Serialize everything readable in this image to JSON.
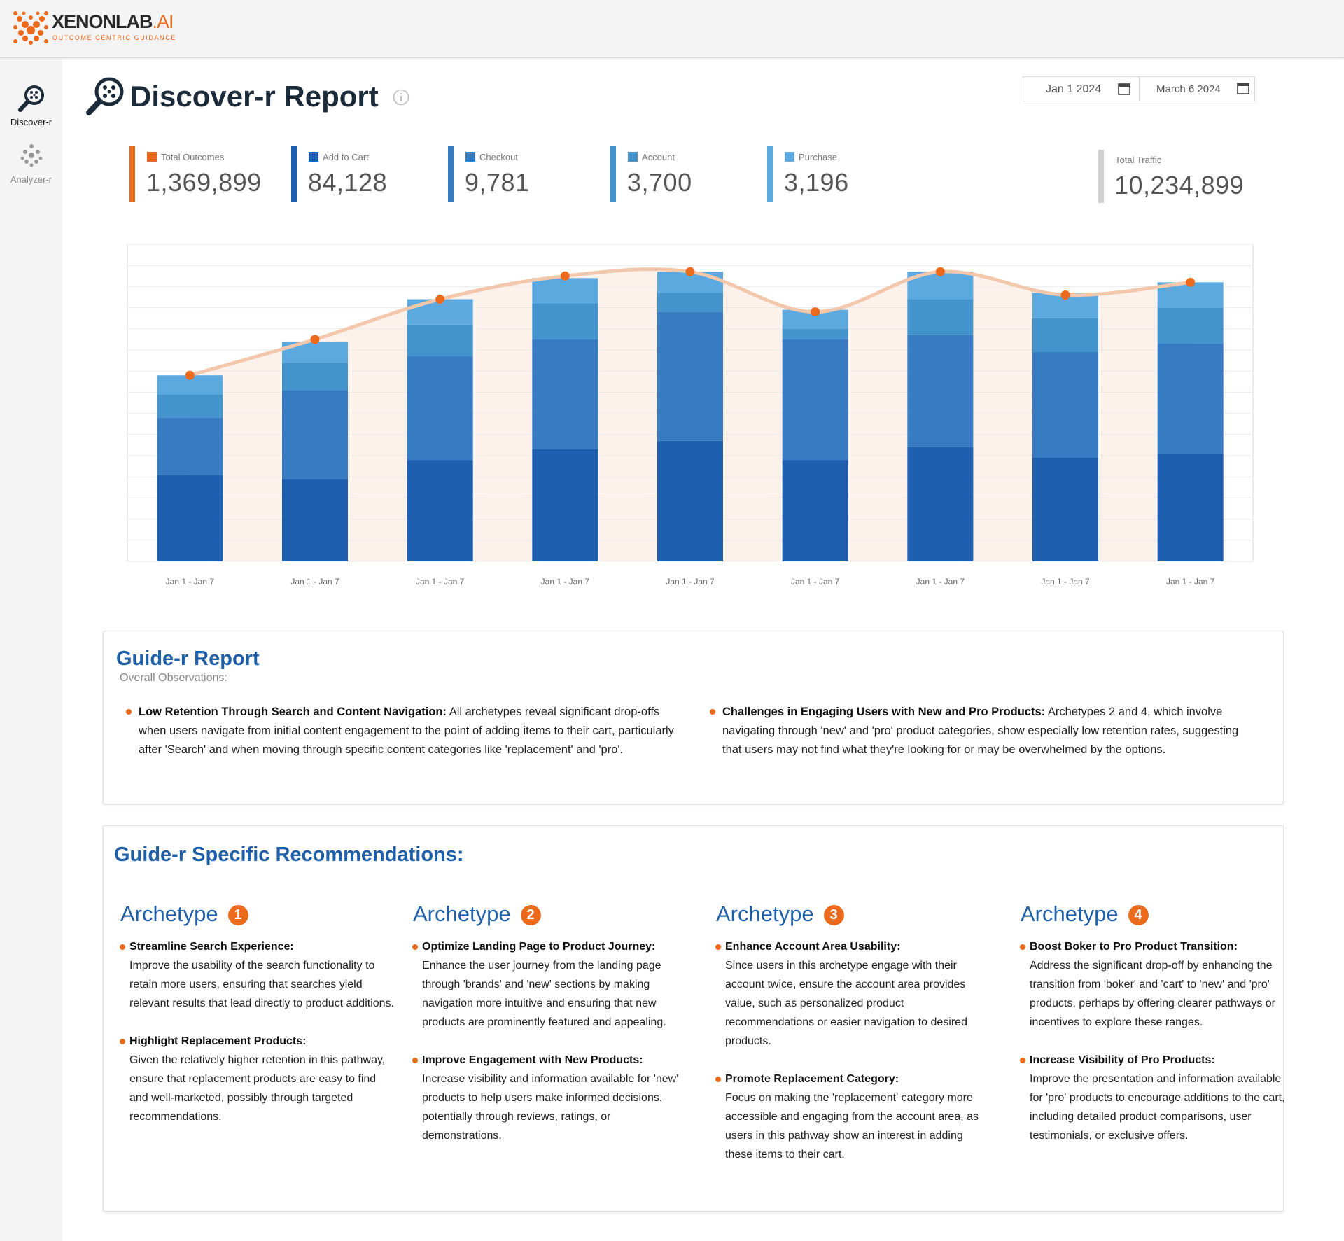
{
  "header": {
    "logo_name": "XENONLAB",
    "logo_suffix": ".AI",
    "tagline": "OUTCOME CENTRIC GUIDANCE"
  },
  "sidebar": [
    "Discover-r",
    "Analyzer-r"
  ],
  "title": "Discover-r Report",
  "date_range": [
    "Jan 1 2024",
    "March 6 2024"
  ],
  "kpi_values": [
    "1,369,899",
    "84,128",
    "9,781",
    "3,700",
    "3,196"
  ],
  "total_traffic": {
    "label": "Total Traffic",
    "value": "10,234,899",
    "color": "#d2d2d2"
  },
  "chart_data": {
    "type": "bar",
    "stacked": true,
    "categories": [
      "Jan 1 - Jan 7",
      "Jan 1 - Jan 7",
      "Jan 1 - Jan 7",
      "Jan 1 - Jan 7",
      "Jan 1 - Jan 7",
      "Jan 1 - Jan 7",
      "Jan 1 - Jan 7",
      "Jan 1 - Jan 7",
      "Jan 1 - Jan 7"
    ],
    "series": [
      {
        "name": "Total Outcomes",
        "type": "line",
        "color": "#ec6a1c",
        "line_color": "#f2c7ab",
        "area_color": "#fdf1ec",
        "values": [
          8.8,
          10.5,
          12.4,
          13.5,
          13.7,
          11.8,
          13.7,
          12.6,
          13.2
        ]
      },
      {
        "name": "Add to Cart",
        "color": "#1f5fb0",
        "values": [
          4.1,
          3.9,
          4.8,
          5.3,
          5.7,
          4.8,
          5.4,
          4.9,
          5.1
        ]
      },
      {
        "name": "Checkout",
        "color": "#377bc2",
        "values": [
          2.7,
          4.2,
          4.9,
          5.2,
          6.1,
          5.7,
          5.3,
          5.0,
          5.2
        ]
      },
      {
        "name": "Account",
        "color": "#4393cd",
        "values": [
          1.1,
          1.3,
          1.5,
          1.7,
          0.9,
          0.5,
          1.7,
          1.6,
          1.7
        ]
      },
      {
        "name": "Purchase",
        "color": "#5ba9df",
        "values": [
          0.9,
          1.0,
          1.2,
          1.2,
          1.0,
          0.9,
          1.3,
          1.2,
          1.2
        ]
      }
    ],
    "ylim": [
      0,
      15
    ],
    "yticks": [
      0,
      1,
      2,
      3,
      4,
      5,
      6,
      7,
      8,
      9,
      10,
      11,
      12,
      13,
      14,
      15
    ],
    "grid": true
  },
  "report": {
    "title": "Guide-r Report",
    "subtitle": "Overall Observations:",
    "items": [
      {
        "heading": "Low Retention Through Search and Content Navigation:",
        "text": "All archetypes reveal significant drop-offs when users navigate from initial content engagement to the point of adding items to their cart, particularly after 'Search' and when moving through specific content categories like 'replacement' and 'pro'."
      },
      {
        "heading": "Challenges in Engaging Users with New and Pro Products:",
        "text": "Archetypes 2 and 4, which involve navigating through 'new' and 'pro' product categories, show especially low retention rates, suggesting that users may not find what they're looking for or may be overwhelmed by the options."
      }
    ]
  },
  "recommendations": {
    "title": "Guide-r Specific Recommendations:",
    "archetypes": [
      {
        "label": "Archetype",
        "number": 1,
        "items": [
          {
            "heading": "Streamline Search Experience:",
            "text": "Improve the usability of the search functionality to retain more users, ensuring that searches yield relevant results that lead directly to product additions."
          },
          {
            "heading": "Highlight Replacement Products:",
            "text": "Given the relatively higher retention in this pathway, ensure that replacement products are easy to find and well-marketed, possibly through targeted recommendations."
          }
        ]
      },
      {
        "label": "Archetype",
        "number": 2,
        "items": [
          {
            "heading": "Optimize Landing Page to Product Journey:",
            "text": "Enhance the user journey from the landing page through 'brands' and 'new' sections by making navigation more intuitive and ensuring that new products are prominently featured and appealing."
          },
          {
            "heading": "Improve Engagement with New Products:",
            "text": "Increase visibility and information available for 'new' products to help users make informed decisions, potentially through reviews, ratings, or demonstrations."
          }
        ]
      },
      {
        "label": "Archetype",
        "number": 3,
        "items": [
          {
            "heading": "Enhance Account Area Usability:",
            "text": "Since users in this archetype engage with their account twice, ensure the account area provides value, such as personalized product recommendations or easier navigation to desired products."
          },
          {
            "heading": "Promote Replacement Category:",
            "text": "Focus on making the 'replacement' category more accessible and engaging from the account area, as users in this pathway show an interest in adding these items to their cart."
          }
        ]
      },
      {
        "label": "Archetype",
        "number": 4,
        "items": [
          {
            "heading": "Boost Boker to Pro Product Transition:",
            "text": "Address the significant drop-off by enhancing the transition from 'boker' and 'cart' to 'new' and 'pro' products, perhaps by offering clearer pathways or incentives to explore these ranges."
          },
          {
            "heading": "Increase Visibility of Pro Products:",
            "text": "Improve the presentation and information available for 'pro' products to encourage additions to the cart, including detailed product comparisons, user testimonials, or exclusive offers."
          }
        ]
      }
    ]
  }
}
